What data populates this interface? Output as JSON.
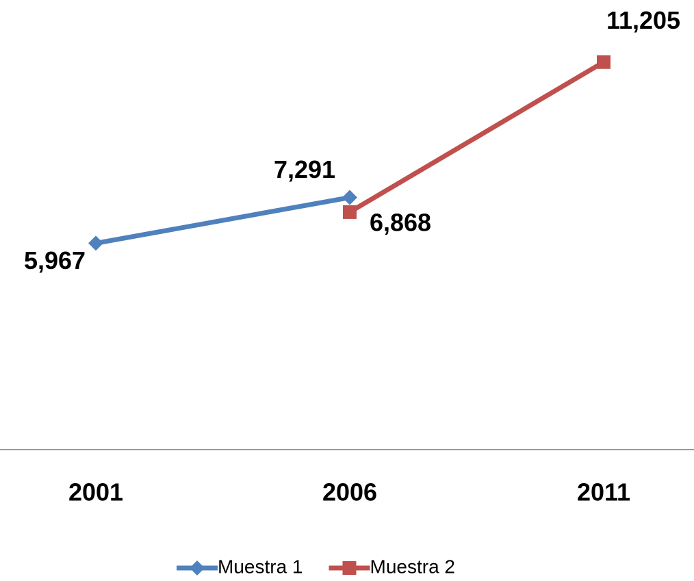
{
  "chart_data": {
    "type": "line",
    "categories": [
      "2001",
      "2006",
      "2011"
    ],
    "series": [
      {
        "name": "Muestra 1",
        "color": "#4f81bd",
        "marker": "diamond",
        "values": [
          5967,
          7291,
          null
        ],
        "value_labels": [
          "5,967",
          "7,291",
          null
        ]
      },
      {
        "name": "Muestra 2",
        "color": "#c0504d",
        "marker": "square",
        "values": [
          null,
          6868,
          11205
        ],
        "value_labels": [
          null,
          "6,868",
          "11,205"
        ]
      }
    ],
    "ylim": [
      0,
      13000
    ],
    "legend": "bottom"
  }
}
